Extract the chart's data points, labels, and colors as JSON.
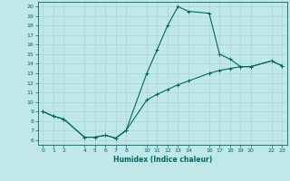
{
  "xlabel": "Humidex (Indice chaleur)",
  "ylabel": "",
  "bg_color": "#c0e8e8",
  "line_color": "#006666",
  "grid_color": "#aad4d4",
  "xlim": [
    -0.5,
    23.5
  ],
  "ylim": [
    5.5,
    20.5
  ],
  "yticks": [
    6,
    7,
    8,
    9,
    10,
    11,
    12,
    13,
    14,
    15,
    16,
    17,
    18,
    19,
    20
  ],
  "xticks": [
    0,
    1,
    2,
    4,
    5,
    6,
    7,
    8,
    10,
    11,
    12,
    13,
    14,
    16,
    17,
    18,
    19,
    20,
    22,
    23
  ],
  "upper_x": [
    0,
    1,
    2,
    4,
    5,
    6,
    7,
    8,
    10,
    11,
    12,
    13,
    14,
    16,
    17,
    18,
    19,
    20,
    22,
    23
  ],
  "upper_y": [
    9.0,
    8.5,
    8.2,
    6.3,
    6.3,
    6.5,
    6.2,
    7.0,
    13.0,
    15.5,
    18.0,
    20.0,
    19.5,
    19.3,
    15.0,
    14.5,
    13.7,
    13.7,
    14.3,
    13.8
  ],
  "lower_x": [
    0,
    1,
    2,
    4,
    5,
    6,
    7,
    8,
    10,
    11,
    12,
    13,
    14,
    16,
    17,
    18,
    19,
    20,
    22,
    23
  ],
  "lower_y": [
    9.0,
    8.5,
    8.2,
    6.3,
    6.3,
    6.5,
    6.2,
    7.0,
    10.2,
    10.8,
    11.3,
    11.8,
    12.2,
    13.0,
    13.3,
    13.5,
    13.7,
    13.7,
    14.3,
    13.8
  ]
}
